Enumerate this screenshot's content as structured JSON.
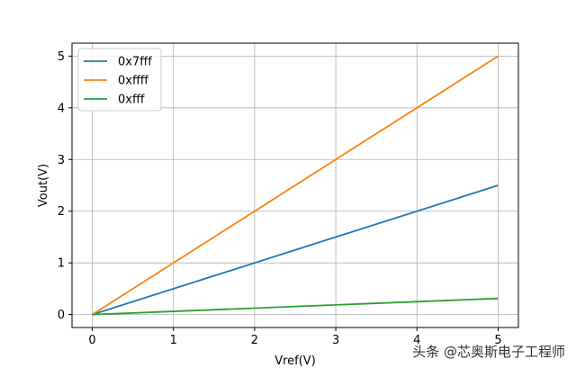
{
  "chart_data": {
    "type": "line",
    "title": "",
    "xlabel": "Vref(V)",
    "ylabel": "Vout(V)",
    "xlim": [
      -0.25,
      5.25
    ],
    "ylim": [
      -0.25,
      5.25
    ],
    "x_ticks": [
      0,
      1,
      2,
      3,
      4,
      5
    ],
    "y_ticks": [
      0,
      1,
      2,
      3,
      4,
      5
    ],
    "grid": true,
    "legend_position": "top-left",
    "series": [
      {
        "name": "0x7fff",
        "color": "#1f77b4",
        "x": [
          0,
          5
        ],
        "y": [
          0,
          2.5
        ]
      },
      {
        "name": "0xffff",
        "color": "#ff7f0e",
        "x": [
          0,
          5
        ],
        "y": [
          0,
          5.0
        ]
      },
      {
        "name": "0xfff",
        "color": "#2ca02c",
        "x": [
          0,
          5
        ],
        "y": [
          0,
          0.3125
        ]
      }
    ]
  },
  "watermark": "头条 @芯奥斯电子工程师"
}
